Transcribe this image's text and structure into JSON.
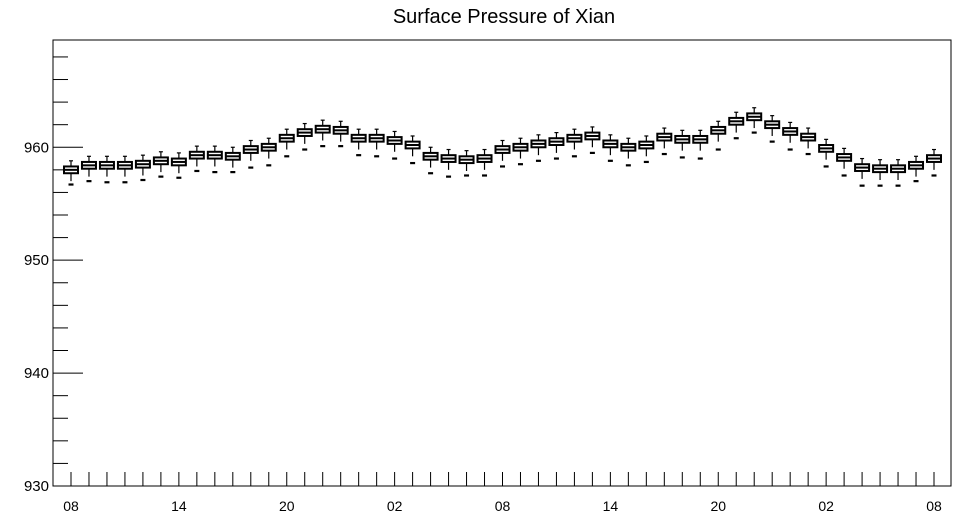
{
  "chart_data": {
    "type": "box",
    "title": "Surface Pressure of Xian",
    "xlabel": "",
    "ylabel": "",
    "ylim": [
      930,
      969.5
    ],
    "yticks": [
      930,
      940,
      950,
      960
    ],
    "yticks_major": [
      930,
      940,
      950,
      960
    ],
    "xticks": [
      "08",
      "14",
      "20",
      "02",
      "08",
      "14",
      "20",
      "02",
      "08"
    ],
    "grid": false,
    "x": [
      "08",
      "09",
      "10",
      "11",
      "12",
      "13",
      "14",
      "15",
      "16",
      "17",
      "18",
      "19",
      "20",
      "21",
      "22",
      "23",
      "00",
      "01",
      "02",
      "03",
      "04",
      "05",
      "06",
      "07",
      "08",
      "09",
      "10",
      "11",
      "12",
      "13",
      "14",
      "15",
      "16",
      "17",
      "18",
      "19",
      "20",
      "21",
      "22",
      "23",
      "00",
      "01",
      "02",
      "03",
      "04",
      "05",
      "06",
      "07",
      "08"
    ],
    "median": [
      958.0,
      958.4,
      958.4,
      958.4,
      958.5,
      958.8,
      958.7,
      959.3,
      959.3,
      959.2,
      959.8,
      960.0,
      960.8,
      961.3,
      961.6,
      961.5,
      960.8,
      960.8,
      960.6,
      960.2,
      959.2,
      959.0,
      958.9,
      959.0,
      959.8,
      960.0,
      960.3,
      960.5,
      960.8,
      961.0,
      960.3,
      960.0,
      960.2,
      960.9,
      960.7,
      960.7,
      961.5,
      962.3,
      962.7,
      962.0,
      961.4,
      960.9,
      959.9,
      959.1,
      958.2,
      958.1,
      958.1,
      958.4,
      959.0
    ],
    "q1": [
      957.7,
      958.1,
      958.1,
      958.1,
      958.2,
      958.5,
      958.4,
      959.0,
      959.0,
      958.9,
      959.5,
      959.7,
      960.5,
      961.0,
      961.3,
      961.2,
      960.5,
      960.5,
      960.3,
      959.9,
      958.9,
      958.7,
      958.6,
      958.7,
      959.5,
      959.7,
      960.0,
      960.2,
      960.5,
      960.7,
      960.0,
      959.7,
      959.9,
      960.6,
      960.4,
      960.4,
      961.2,
      962.0,
      962.4,
      961.7,
      961.1,
      960.6,
      959.6,
      958.8,
      957.9,
      957.8,
      957.8,
      958.1,
      958.7
    ],
    "q3": [
      958.3,
      958.7,
      958.7,
      958.7,
      958.8,
      959.1,
      959.0,
      959.6,
      959.6,
      959.5,
      960.1,
      960.3,
      961.1,
      961.6,
      961.9,
      961.8,
      961.1,
      961.1,
      960.9,
      960.5,
      959.5,
      959.3,
      959.2,
      959.3,
      960.1,
      960.3,
      960.6,
      960.8,
      961.1,
      961.3,
      960.6,
      960.3,
      960.5,
      961.2,
      961.0,
      961.0,
      961.8,
      962.6,
      963.0,
      962.3,
      961.7,
      961.2,
      960.2,
      959.4,
      958.5,
      958.4,
      958.4,
      958.7,
      959.3
    ],
    "whisker_low": [
      957.0,
      957.4,
      957.4,
      957.4,
      957.5,
      957.8,
      957.7,
      958.3,
      958.3,
      958.2,
      958.8,
      959.0,
      959.8,
      960.3,
      960.6,
      960.5,
      959.8,
      959.8,
      959.6,
      959.2,
      958.2,
      958.0,
      957.9,
      958.0,
      958.8,
      959.0,
      959.3,
      959.5,
      959.8,
      960.0,
      959.3,
      959.0,
      959.2,
      959.9,
      959.7,
      959.7,
      960.5,
      961.3,
      961.7,
      961.0,
      960.4,
      959.9,
      958.9,
      958.1,
      957.2,
      957.1,
      957.1,
      957.4,
      958.0
    ],
    "whisker_high": [
      958.8,
      959.2,
      959.2,
      959.2,
      959.3,
      959.6,
      959.5,
      960.1,
      960.1,
      960.0,
      960.6,
      960.8,
      961.6,
      962.1,
      962.4,
      962.3,
      961.6,
      961.6,
      961.4,
      961.0,
      960.0,
      959.8,
      959.7,
      959.8,
      960.6,
      960.8,
      961.1,
      961.3,
      961.6,
      961.8,
      961.1,
      960.8,
      961.0,
      961.7,
      961.5,
      961.5,
      962.3,
      963.1,
      963.5,
      962.8,
      962.2,
      961.7,
      960.7,
      959.9,
      959.0,
      958.9,
      958.9,
      959.2,
      959.8
    ],
    "outlier_low": [
      956.7,
      957.0,
      956.9,
      956.9,
      957.1,
      957.4,
      957.3,
      957.9,
      957.8,
      957.8,
      958.2,
      958.4,
      959.2,
      959.8,
      960.1,
      960.1,
      959.3,
      959.2,
      959.0,
      958.6,
      957.7,
      957.4,
      957.5,
      957.5,
      958.3,
      958.5,
      958.8,
      959.0,
      959.2,
      959.5,
      958.8,
      958.4,
      958.7,
      959.4,
      959.1,
      959.0,
      959.8,
      960.8,
      961.3,
      960.5,
      959.8,
      959.4,
      958.3,
      957.5,
      956.6,
      956.6,
      956.6,
      957.0,
      957.5
    ]
  }
}
